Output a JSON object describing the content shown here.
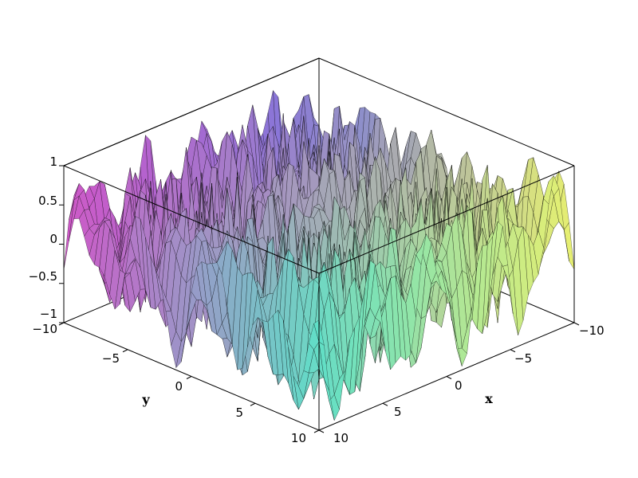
{
  "chart_data": {
    "type": "surface3d",
    "function_note": "",
    "x": {
      "label": "x",
      "range": [
        -10,
        10
      ],
      "ticks": [
        -10,
        -5,
        0,
        5,
        10
      ]
    },
    "y": {
      "label": "y",
      "range": [
        -10,
        10
      ],
      "ticks": [
        -10,
        -5,
        0,
        5,
        10
      ]
    },
    "z": {
      "range": [
        -1,
        1
      ],
      "ticks": [
        1,
        0.5,
        0,
        -0.5,
        -1
      ]
    },
    "tick_labels": {
      "z": [
        "1",
        "0.5",
        "0",
        "−0.5",
        "−1"
      ],
      "y": [
        "−10",
        "−5",
        "0",
        "5",
        "10"
      ],
      "x": [
        "−10",
        "−5",
        "0",
        "5",
        "10"
      ]
    },
    "grid_samples": 50,
    "surface_description": "rapidly oscillating surface with values between -1 and 1 over the square domain",
    "colors": {
      "corner_x_min_y_min": "#7b7bdc",
      "corner_x_min_y_max": "#e8f070",
      "corner_x_max_y_min": "#d055c8",
      "corner_x_max_y_max": "#5ee0c8",
      "edge": "#000000",
      "box": "#000000"
    },
    "box": true,
    "grid": false
  }
}
